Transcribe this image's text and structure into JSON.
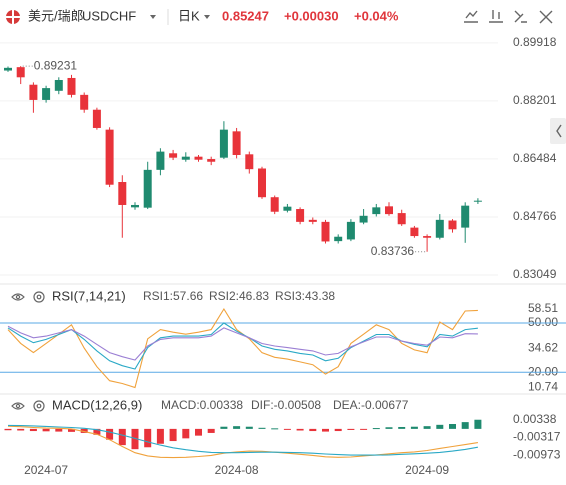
{
  "header": {
    "name": "美元/瑞郎",
    "symbol": "USDCHF",
    "period": "日K",
    "price": "0.85247",
    "change": "+0.00030",
    "change_pct": "+0.04%"
  },
  "chart_data": [
    {
      "type": "candlestick",
      "grid": true,
      "up_color": "#1f8a6f",
      "down_color": "#e8333a",
      "categories": [
        null,
        null,
        null,
        "2024-07",
        null,
        null,
        null,
        null,
        null,
        null,
        null,
        null,
        null,
        null,
        null,
        null,
        null,
        null,
        "2024-08",
        null,
        null,
        null,
        null,
        null,
        null,
        null,
        null,
        null,
        null,
        null,
        null,
        null,
        null,
        "2024-09",
        null,
        null,
        null,
        null
      ],
      "open": [
        0.891,
        0.892,
        0.8868,
        0.8823,
        0.885,
        0.8888,
        0.8838,
        0.8794,
        0.8735,
        0.858,
        0.8505,
        0.8504,
        0.8616,
        0.8665,
        0.8646,
        0.8655,
        0.8648,
        0.8652,
        0.873,
        0.8662,
        0.862,
        0.8535,
        0.8495,
        0.85,
        0.8468,
        0.8462,
        0.8405,
        0.841,
        0.846,
        0.8485,
        0.8508,
        0.8488,
        0.8445,
        0.842,
        0.8415,
        0.8466,
        0.8445,
        0.85217
      ],
      "high": [
        0.8922,
        0.89231,
        0.8875,
        0.8865,
        0.889,
        0.8897,
        0.8845,
        0.88,
        0.8742,
        0.86,
        0.852,
        0.864,
        0.868,
        0.8675,
        0.8668,
        0.866,
        0.8655,
        0.876,
        0.874,
        0.867,
        0.8625,
        0.854,
        0.8515,
        0.8505,
        0.8475,
        0.8468,
        0.8425,
        0.847,
        0.85,
        0.8515,
        0.852,
        0.8498,
        0.845,
        0.8425,
        0.8485,
        0.847,
        0.852,
        0.8532
      ],
      "low": [
        0.8906,
        0.887,
        0.8785,
        0.8815,
        0.884,
        0.883,
        0.8785,
        0.8735,
        0.8565,
        0.8415,
        0.8498,
        0.85,
        0.86,
        0.8645,
        0.864,
        0.864,
        0.863,
        0.8648,
        0.865,
        0.8605,
        0.853,
        0.8485,
        0.849,
        0.8455,
        0.8455,
        0.8398,
        0.8398,
        0.8405,
        0.8455,
        0.8478,
        0.848,
        0.845,
        0.8415,
        0.83736,
        0.841,
        0.843,
        0.84,
        0.8515
      ],
      "close": [
        0.8918,
        0.889,
        0.8823,
        0.8858,
        0.8882,
        0.8838,
        0.8794,
        0.874,
        0.8572,
        0.8512,
        0.8512,
        0.8616,
        0.867,
        0.8652,
        0.8655,
        0.8646,
        0.864,
        0.8735,
        0.866,
        0.8618,
        0.8535,
        0.8492,
        0.8507,
        0.8462,
        0.8462,
        0.8404,
        0.8418,
        0.8462,
        0.848,
        0.8505,
        0.8485,
        0.8455,
        0.842,
        0.8415,
        0.8468,
        0.844,
        0.851,
        0.85247
      ],
      "annotations": [
        0.89231,
        0.83736
      ],
      "ylim": [
        0.8284,
        0.903
      ],
      "yticks": [
        0.89918,
        0.88201,
        0.86484,
        0.84766,
        0.83049
      ]
    },
    {
      "type": "line",
      "title": "RSI(7,14,21)",
      "series": [
        {
          "name": "RSI1:57.66",
          "color": "#f0a23c",
          "values": [
            46,
            37.6,
            32,
            37.6,
            43.2,
            48.9,
            34.7,
            23.4,
            14.9,
            13.2,
            10.74,
            40.4,
            46,
            44.4,
            43.2,
            44.4,
            46,
            58.51,
            46,
            40.4,
            31.9,
            29.1,
            28,
            26.3,
            24.6,
            18.9,
            23.4,
            37.6,
            43.2,
            48.9,
            46,
            37.6,
            33.6,
            31.9,
            50.6,
            46,
            57.3,
            57.66
          ]
        },
        {
          "name": "RSI2:46.83",
          "color": "#2aa9c6",
          "values": [
            47,
            42,
            38,
            40,
            43,
            46,
            40,
            33,
            27,
            24,
            22,
            35,
            41,
            42,
            42,
            42,
            43,
            50,
            45,
            41,
            36,
            34,
            33,
            31.5,
            30.5,
            27,
            28.5,
            35,
            39,
            43,
            43,
            39,
            37,
            35.5,
            43,
            42,
            46,
            46.83
          ]
        },
        {
          "name": "RSI3:43.38",
          "color": "#9b7fd4",
          "values": [
            48,
            44,
            41,
            42,
            44,
            46,
            42,
            37,
            32,
            29.5,
            27.5,
            36,
            40,
            41,
            41,
            41,
            42,
            47,
            44,
            41,
            37.5,
            36,
            35,
            34,
            33,
            30.5,
            31.5,
            35.5,
            38.5,
            41.5,
            41.5,
            39,
            37.5,
            36.5,
            41.5,
            41,
            43.5,
            43.38
          ]
        }
      ],
      "ylim": [
        8,
        64
      ],
      "yticks": [
        58.51,
        {
          "value": 50,
          "label": "50.00",
          "line": true
        },
        34.62,
        {
          "value": 20,
          "label": "20.00",
          "line": true
        },
        10.74
      ],
      "line_color": "#5aa9e6"
    },
    {
      "type": "macd",
      "title": "MACD(12,26,9)",
      "series": [
        {
          "name": "MACD:0.00338",
          "kind": "bar",
          "color": "#c44fc4",
          "up_color": "#1f8a6f",
          "down_color": "#e8333a",
          "values": [
            -0.0005,
            -0.0006,
            -0.0008,
            -0.0009,
            -0.001,
            -0.0011,
            -0.0015,
            -0.0022,
            -0.004,
            -0.006,
            -0.0075,
            -0.0068,
            -0.0055,
            -0.0045,
            -0.0035,
            -0.0025,
            -0.0015,
            0.0008,
            0.001,
            0.0008,
            0.0004,
            0.0002,
            -0.0003,
            -0.0006,
            -0.0008,
            -0.001,
            -0.0008,
            -0.0004,
            -0.0001,
            0.0003,
            0.0006,
            0.0007,
            0.0008,
            0.001,
            0.0015,
            0.0018,
            0.0025,
            0.00338
          ]
        },
        {
          "name": "DIF:-0.00508",
          "kind": "line",
          "color": "#f0a23c",
          "values": [
            0.001,
            0.0008,
            0.0005,
            0.0003,
            0.0002,
            0,
            -0.001,
            -0.002,
            -0.004,
            -0.0065,
            -0.0088,
            -0.01,
            -0.0105,
            -0.0106,
            -0.0105,
            -0.0102,
            -0.0098,
            -0.009,
            -0.0085,
            -0.0082,
            -0.0083,
            -0.0086,
            -0.009,
            -0.0094,
            -0.0098,
            -0.0103,
            -0.0105,
            -0.0104,
            -0.01,
            -0.0096,
            -0.0092,
            -0.0088,
            -0.0085,
            -0.008,
            -0.0072,
            -0.0065,
            -0.0058,
            -0.00508
          ]
        },
        {
          "name": "DEA:-0.00677",
          "kind": "line",
          "color": "#2aa9c6",
          "values": [
            0.0013,
            0.0012,
            0.0011,
            0.0009,
            0.0007,
            0.0005,
            0.0002,
            -0.0003,
            -0.0012,
            -0.0023,
            -0.0035,
            -0.0048,
            -0.006,
            -0.007,
            -0.0077,
            -0.0083,
            -0.0087,
            -0.0088,
            -0.0088,
            -0.0087,
            -0.0086,
            -0.0086,
            -0.0087,
            -0.0088,
            -0.009,
            -0.0093,
            -0.0095,
            -0.0097,
            -0.0097,
            -0.0097,
            -0.0096,
            -0.0094,
            -0.0092,
            -0.009,
            -0.0087,
            -0.0082,
            -0.0076,
            -0.00677
          ]
        }
      ],
      "ylim": [
        -0.0115,
        0.0055
      ],
      "yticks": [
        0.00338,
        -0.00317,
        -0.00973
      ]
    }
  ]
}
